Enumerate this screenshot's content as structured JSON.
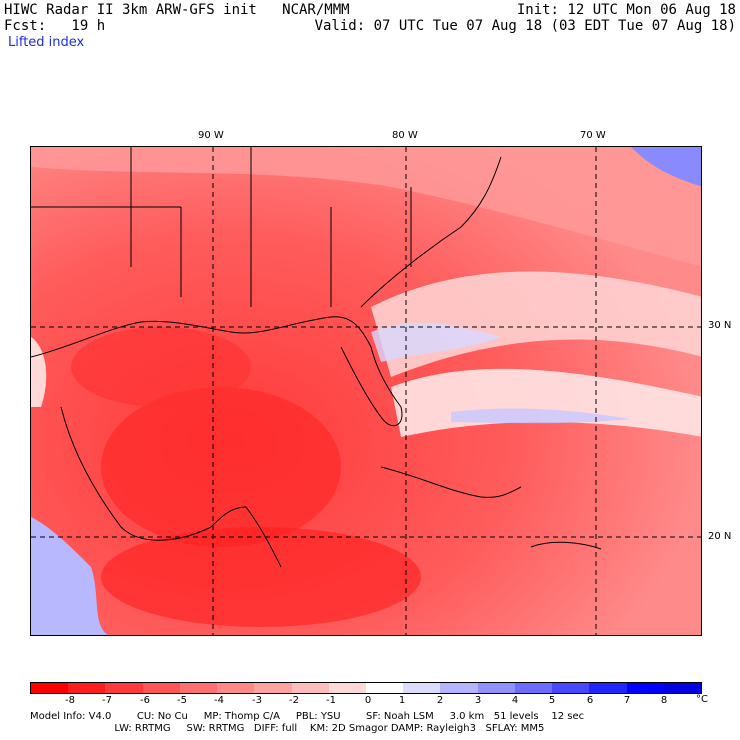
{
  "header": {
    "title": "HIWC Radar II 3km ARW-GFS init   NCAR/MMM",
    "init": "Init: 12 UTC Mon 06 Aug 18",
    "fcst": "Fcst:   19 h",
    "valid": "Valid: 07 UTC Tue 07 Aug 18 (03 EDT Tue 07 Aug 18)",
    "field": "Lifted index"
  },
  "map": {
    "longitude_labels": [
      "90 W",
      "80 W",
      "70 W"
    ],
    "latitude_labels": [
      "30 N",
      "20 N"
    ]
  },
  "legend": {
    "ticks": [
      "-8",
      "-7",
      "-6",
      "-5",
      "-4",
      "-3",
      "-2",
      "-1",
      "0",
      "1",
      "2",
      "3",
      "4",
      "5",
      "6",
      "7",
      "8"
    ],
    "unit": "°C",
    "colors": [
      "#ff0000",
      "#ff1e1e",
      "#ff3a3a",
      "#ff5555",
      "#ff6f6f",
      "#ff8888",
      "#ffa2a2",
      "#ffbcbc",
      "#ffd8d8",
      "#ffffff",
      "#dcdcff",
      "#b4b4ff",
      "#9090ff",
      "#6c6cff",
      "#4848ff",
      "#2424ff",
      "#0000ff",
      "#0000e0"
    ]
  },
  "footer": {
    "line1": "Model Info: V4.0        CU: No Cu     MP: Thomp C/A     PBL: YSU        SF: Noah LSM     3.0 km   51 levels    12 sec",
    "line2": "                                    LW: RRTMG     SW: RRTMG   DIFF: full    KM: 2D Smagor DAMP: Rayleigh3   SFLAY: MM5"
  }
}
